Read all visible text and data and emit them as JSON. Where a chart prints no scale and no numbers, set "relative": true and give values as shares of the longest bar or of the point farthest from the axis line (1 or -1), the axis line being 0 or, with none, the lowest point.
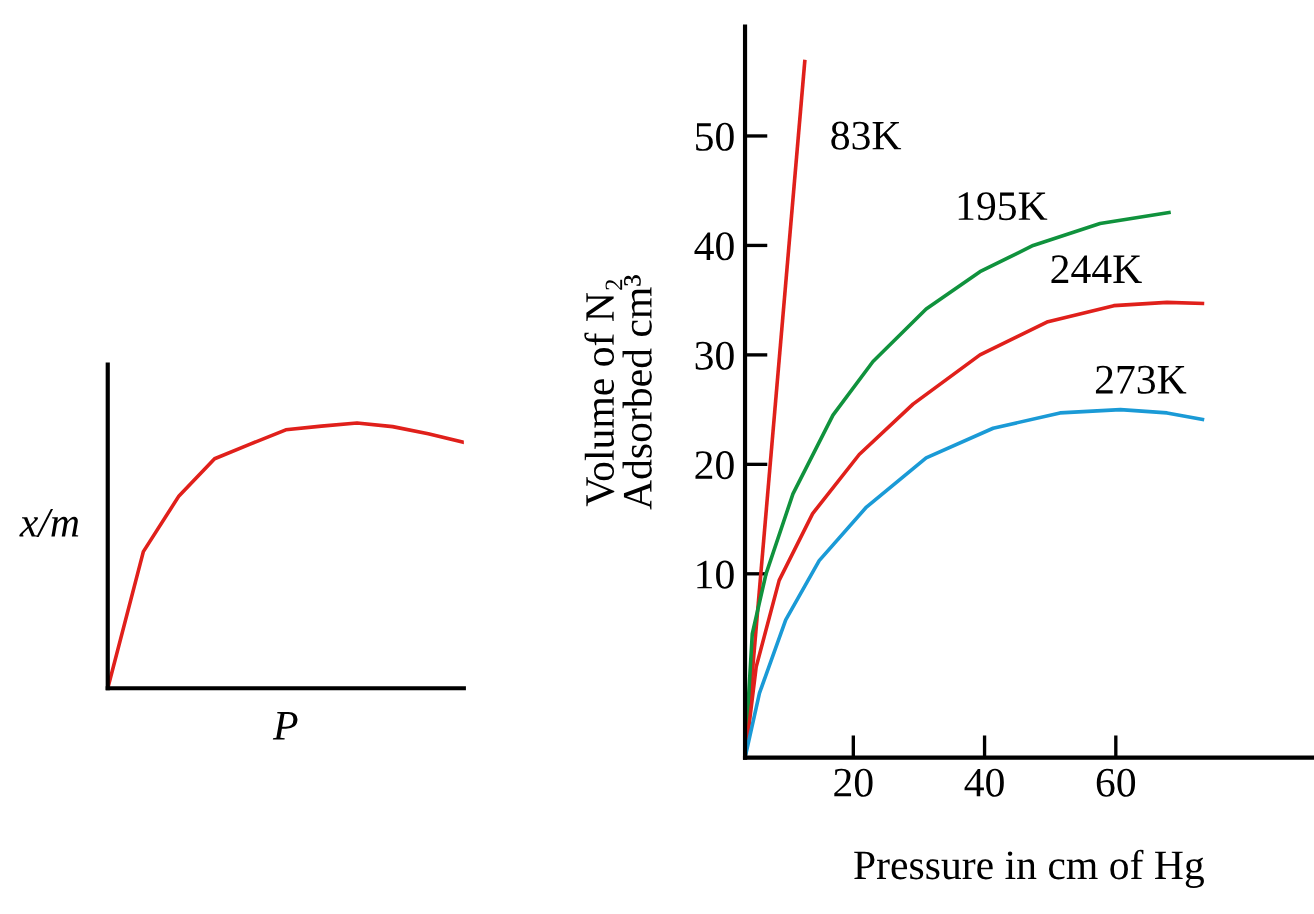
{
  "chart_data": [
    {
      "type": "line",
      "relative": true,
      "xlabel": "P",
      "ylabel": "x/m",
      "tick_labels": false,
      "categories": [
        null,
        null,
        null,
        null,
        null,
        null,
        null,
        null,
        null,
        null,
        null
      ],
      "series": [
        {
          "color": "#e0201b",
          "values": [
            0,
            0.515,
            0.725,
            0.865,
            0.92,
            0.974,
            0.988,
            1.0,
            0.986,
            0.959,
            0.927
          ]
        }
      ]
    },
    {
      "type": "line",
      "xlabel": "Pressure in cm of Hg",
      "ylabel": "Volume of N₂\nAdsorbed cm³",
      "xlim": [
        3.5,
        90
      ],
      "ylim": [
        -6.8,
        60
      ],
      "xticks": [
        20,
        40,
        60
      ],
      "yticks": [
        10,
        20,
        30,
        40,
        50
      ],
      "series": [
        {
          "name": "83K",
          "color": "#e0201b",
          "x": [
            3.5,
            12.6
          ],
          "values": [
            -6.8,
            56.8
          ]
        },
        {
          "name": "195K",
          "color": "#10923d",
          "x": [
            3.5,
            4.6,
            6.7,
            10.8,
            16.9,
            23,
            31.1,
            39.3,
            47.4,
            57.6,
            68.1
          ],
          "values": [
            -6.8,
            4.5,
            10,
            17.3,
            24.5,
            29.4,
            34.2,
            37.6,
            40,
            42,
            43
          ]
        },
        {
          "name": "244K",
          "color": "#e0201b",
          "x": [
            3.5,
            5.2,
            8.7,
            13.8,
            20.9,
            29.1,
            39.3,
            49.5,
            59.7,
            67.8,
            73.2
          ],
          "values": [
            -6.8,
            1.5,
            9.4,
            15.5,
            20.9,
            25.5,
            30,
            33,
            34.5,
            34.8,
            34.7
          ]
        },
        {
          "name": "273K",
          "color": "#1a9ad6",
          "x": [
            3.5,
            5.7,
            9.7,
            14.8,
            22,
            31.1,
            41.3,
            51.5,
            60.7,
            67.8,
            73.2
          ],
          "values": [
            -6.8,
            -0.9,
            5.8,
            11.2,
            16.1,
            20.6,
            23.3,
            24.7,
            25,
            24.7,
            24.1
          ]
        }
      ]
    }
  ]
}
